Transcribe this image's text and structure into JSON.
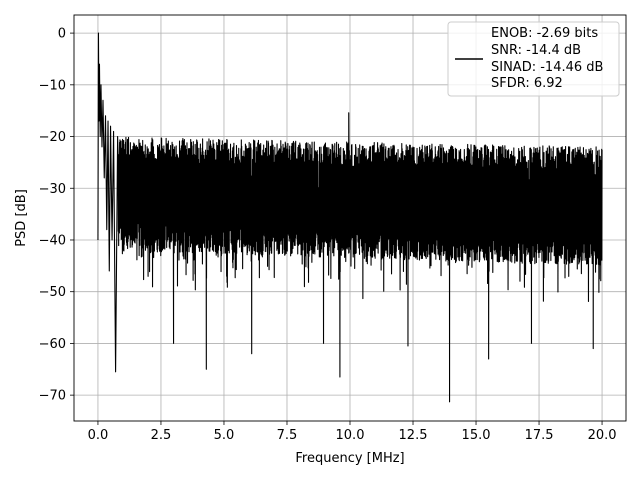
{
  "chart_data": {
    "type": "line",
    "xlabel": "Frequency [MHz]",
    "ylabel": "PSD [dB]",
    "xlim": [
      -0.95,
      20.95
    ],
    "ylim": [
      -75,
      3.5
    ],
    "x_ticks": [
      0.0,
      2.5,
      5.0,
      7.5,
      10.0,
      12.5,
      15.0,
      17.5,
      20.0
    ],
    "x_tick_labels": [
      "0.0",
      "2.5",
      "5.0",
      "7.5",
      "10.0",
      "12.5",
      "15.0",
      "17.5",
      "20.0"
    ],
    "y_ticks": [
      0,
      -10,
      -20,
      -30,
      -40,
      -50,
      -60,
      -70
    ],
    "y_tick_labels": [
      "0",
      "−10",
      "−20",
      "−30",
      "−40",
      "−50",
      "−60",
      "−70"
    ],
    "grid": true,
    "legend_position": "top-right",
    "legend_lines": [
      "ENOB: -2.69 bits",
      "SNR: -14.4 dB",
      "SINAD: -14.46 dB",
      "SFDR: 6.92"
    ],
    "series": [
      {
        "color": "#000000",
        "noise_floor": {
          "x_range": [
            0.0,
            20.0
          ],
          "upper_envelope_db": [
            -20,
            -22
          ],
          "lower_envelope_db": [
            -42,
            -45
          ],
          "typical_max_peak_db": -15.4
        },
        "points": [
          {
            "x": 0.0,
            "y": -40
          },
          {
            "x": 0.02,
            "y": 0.0
          },
          {
            "x": 0.04,
            "y": -17
          },
          {
            "x": 0.06,
            "y": -6
          },
          {
            "x": 0.09,
            "y": -20
          },
          {
            "x": 0.12,
            "y": -10
          },
          {
            "x": 0.16,
            "y": -22
          },
          {
            "x": 0.2,
            "y": -13
          },
          {
            "x": 0.25,
            "y": -28
          },
          {
            "x": 0.3,
            "y": -16
          },
          {
            "x": 0.35,
            "y": -38
          },
          {
            "x": 0.4,
            "y": -17
          },
          {
            "x": 0.45,
            "y": -46
          },
          {
            "x": 0.5,
            "y": -18
          },
          {
            "x": 0.56,
            "y": -40
          },
          {
            "x": 0.62,
            "y": -19
          },
          {
            "x": 0.7,
            "y": -65.5
          },
          {
            "x": 0.78,
            "y": -20
          },
          {
            "x": 3.0,
            "y": -60
          },
          {
            "x": 4.3,
            "y": -65
          },
          {
            "x": 6.1,
            "y": -62
          },
          {
            "x": 8.95,
            "y": -60
          },
          {
            "x": 9.6,
            "y": -66.5
          },
          {
            "x": 9.95,
            "y": -15.4
          },
          {
            "x": 12.3,
            "y": -60.5
          },
          {
            "x": 13.95,
            "y": -71.3
          },
          {
            "x": 15.5,
            "y": -63
          },
          {
            "x": 17.2,
            "y": -60
          },
          {
            "x": 19.65,
            "y": -61
          }
        ]
      }
    ]
  }
}
